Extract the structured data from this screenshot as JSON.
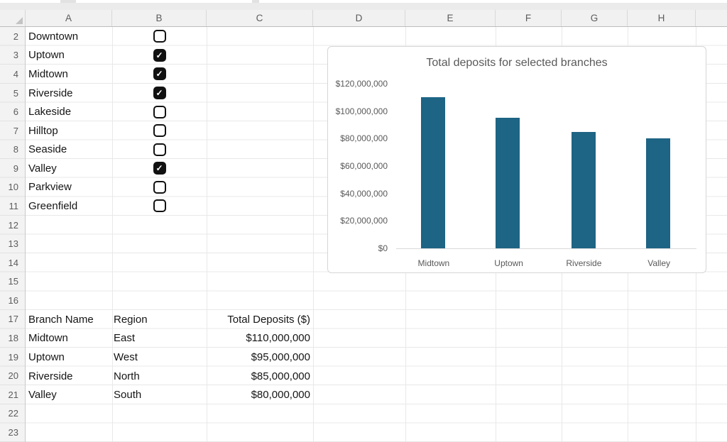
{
  "sheet": {
    "columns": [
      "A",
      "B",
      "C",
      "D",
      "E",
      "F",
      "G",
      "H"
    ],
    "row_numbers": [
      "2",
      "3",
      "4",
      "5",
      "6",
      "7",
      "8",
      "9",
      "10",
      "11",
      "12",
      "13",
      "14",
      "15",
      "16",
      "17",
      "18",
      "19",
      "20",
      "21",
      "22",
      "23"
    ],
    "branches": [
      {
        "name": "Downtown",
        "checked": false
      },
      {
        "name": "Uptown",
        "checked": true
      },
      {
        "name": "Midtown",
        "checked": true
      },
      {
        "name": "Riverside",
        "checked": true
      },
      {
        "name": "Lakeside",
        "checked": false
      },
      {
        "name": "Hilltop",
        "checked": false
      },
      {
        "name": "Seaside",
        "checked": false
      },
      {
        "name": "Valley",
        "checked": true
      },
      {
        "name": "Parkview",
        "checked": false
      },
      {
        "name": "Greenfield",
        "checked": false
      }
    ],
    "table": {
      "headers": [
        "Branch Name",
        "Region",
        "Total Deposits ($)"
      ],
      "rows": [
        [
          "Midtown",
          "East",
          "$110,000,000"
        ],
        [
          "Uptown",
          "West",
          "$95,000,000"
        ],
        [
          "Riverside",
          "North",
          "$85,000,000"
        ],
        [
          "Valley",
          "South",
          "$80,000,000"
        ]
      ]
    }
  },
  "chart_data": {
    "type": "bar",
    "title": "Total deposits for selected branches",
    "categories": [
      "Midtown",
      "Uptown",
      "Riverside",
      "Valley"
    ],
    "values": [
      110000000,
      95000000,
      85000000,
      80000000
    ],
    "xlabel": "",
    "ylabel": "",
    "ylim": [
      0,
      120000000
    ],
    "ytick_labels": [
      "$120,000,000",
      "$100,000,000",
      "$80,000,000",
      "$60,000,000",
      "$40,000,000",
      "$20,000,000",
      "$0"
    ],
    "grid": false,
    "legend": "none",
    "bar_color": "#1e6484"
  },
  "colors": {
    "bar": "#1e6484",
    "chart_text": "#595959",
    "header_bg": "#f1f1f1",
    "gridline": "#e8e8e8",
    "checkbox": "#111111"
  }
}
